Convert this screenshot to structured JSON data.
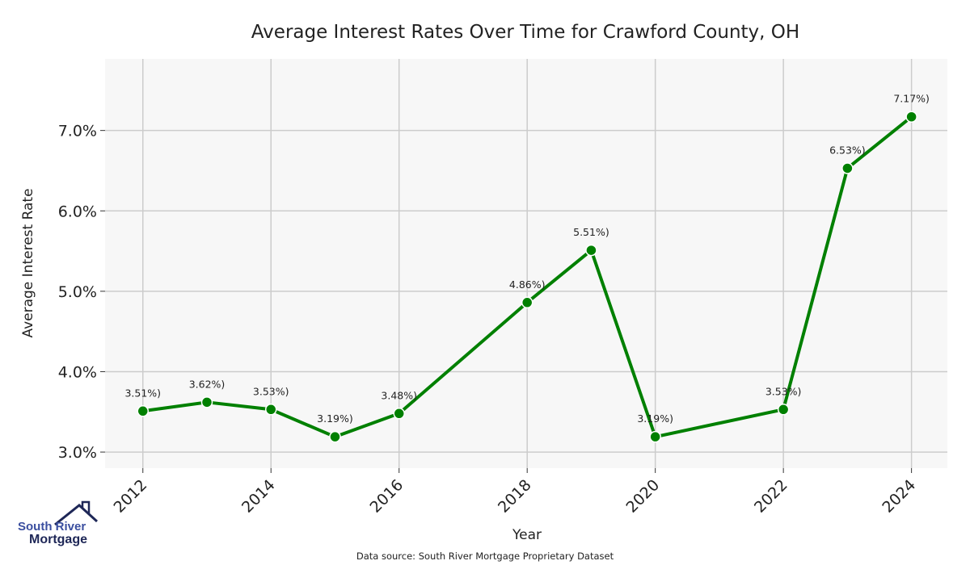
{
  "chart_data": {
    "type": "line",
    "title": "Average Interest Rates Over Time for Crawford County, OH",
    "xlabel": "Year",
    "ylabel": "Average Interest Rate",
    "x": [
      2012,
      2013,
      2014,
      2015,
      2016,
      2018,
      2019,
      2020,
      2022,
      2023,
      2024
    ],
    "values": [
      3.51,
      3.62,
      3.53,
      3.19,
      3.48,
      4.86,
      5.51,
      3.19,
      3.53,
      6.53,
      7.17
    ],
    "data_labels": [
      "3.51%)",
      "3.62%)",
      "3.53%)",
      "3.19%)",
      "3.48%)",
      "4.86%)",
      "5.51%)",
      "3.19%)",
      "3.53%)",
      "6.53%)",
      "7.17%)"
    ],
    "x_ticks": [
      "2012",
      "2014",
      "2016",
      "2018",
      "2020",
      "2022",
      "2024"
    ],
    "y_ticks": [
      "3.0%",
      "4.0%",
      "5.0%",
      "6.0%",
      "7.0%"
    ],
    "y_tick_values": [
      3,
      4,
      5,
      6,
      7
    ],
    "xlim": [
      2011.41,
      2024.56
    ],
    "ylim": [
      2.8,
      7.89
    ],
    "grid": true,
    "line_color": "#008000",
    "footnote": "Data source: South River Mortgage Proprietary Dataset"
  },
  "logo": {
    "line1": "South River",
    "line2": "Mortgage"
  }
}
